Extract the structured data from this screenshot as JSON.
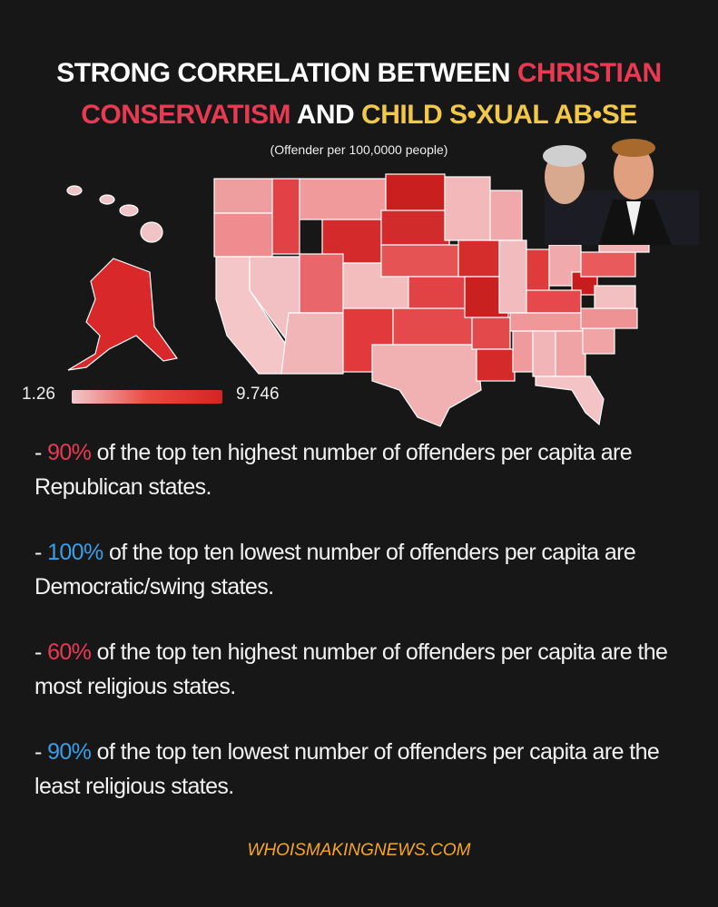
{
  "title": {
    "line1_white": "STRONG CORRELATION BETWEEN ",
    "line1_red": "CHRISTIAN",
    "line2_red": "CONSERVATISM",
    "line2_white": " AND ",
    "line2_yellow": "CHILD S•XUAL AB•SE"
  },
  "subtitle": "(Offender per 100,0000 people)",
  "legend": {
    "min": "1.26",
    "max": "9.746",
    "colors": [
      "#f1c9cc",
      "#d42424"
    ]
  },
  "points": [
    {
      "prefix": "- ",
      "pct": "90%",
      "pct_color": "red",
      "text": " of the top ten highest number of offenders per capita are Republican states."
    },
    {
      "prefix": "- ",
      "pct": "100%",
      "pct_color": "blue",
      "text": " of the top ten lowest number of offenders per capita are Democratic/swing states."
    },
    {
      "prefix": "- ",
      "pct": "60%",
      "pct_color": "red",
      "text": " of the top ten highest number of offenders per capita are the most religious states."
    },
    {
      "prefix": "- ",
      "pct": "90%",
      "pct_color": "blue",
      "text": " of the top ten lowest number of offenders per capita are the least religious states."
    }
  ],
  "footer": "WHOISMAKINGNEWS.COM"
}
